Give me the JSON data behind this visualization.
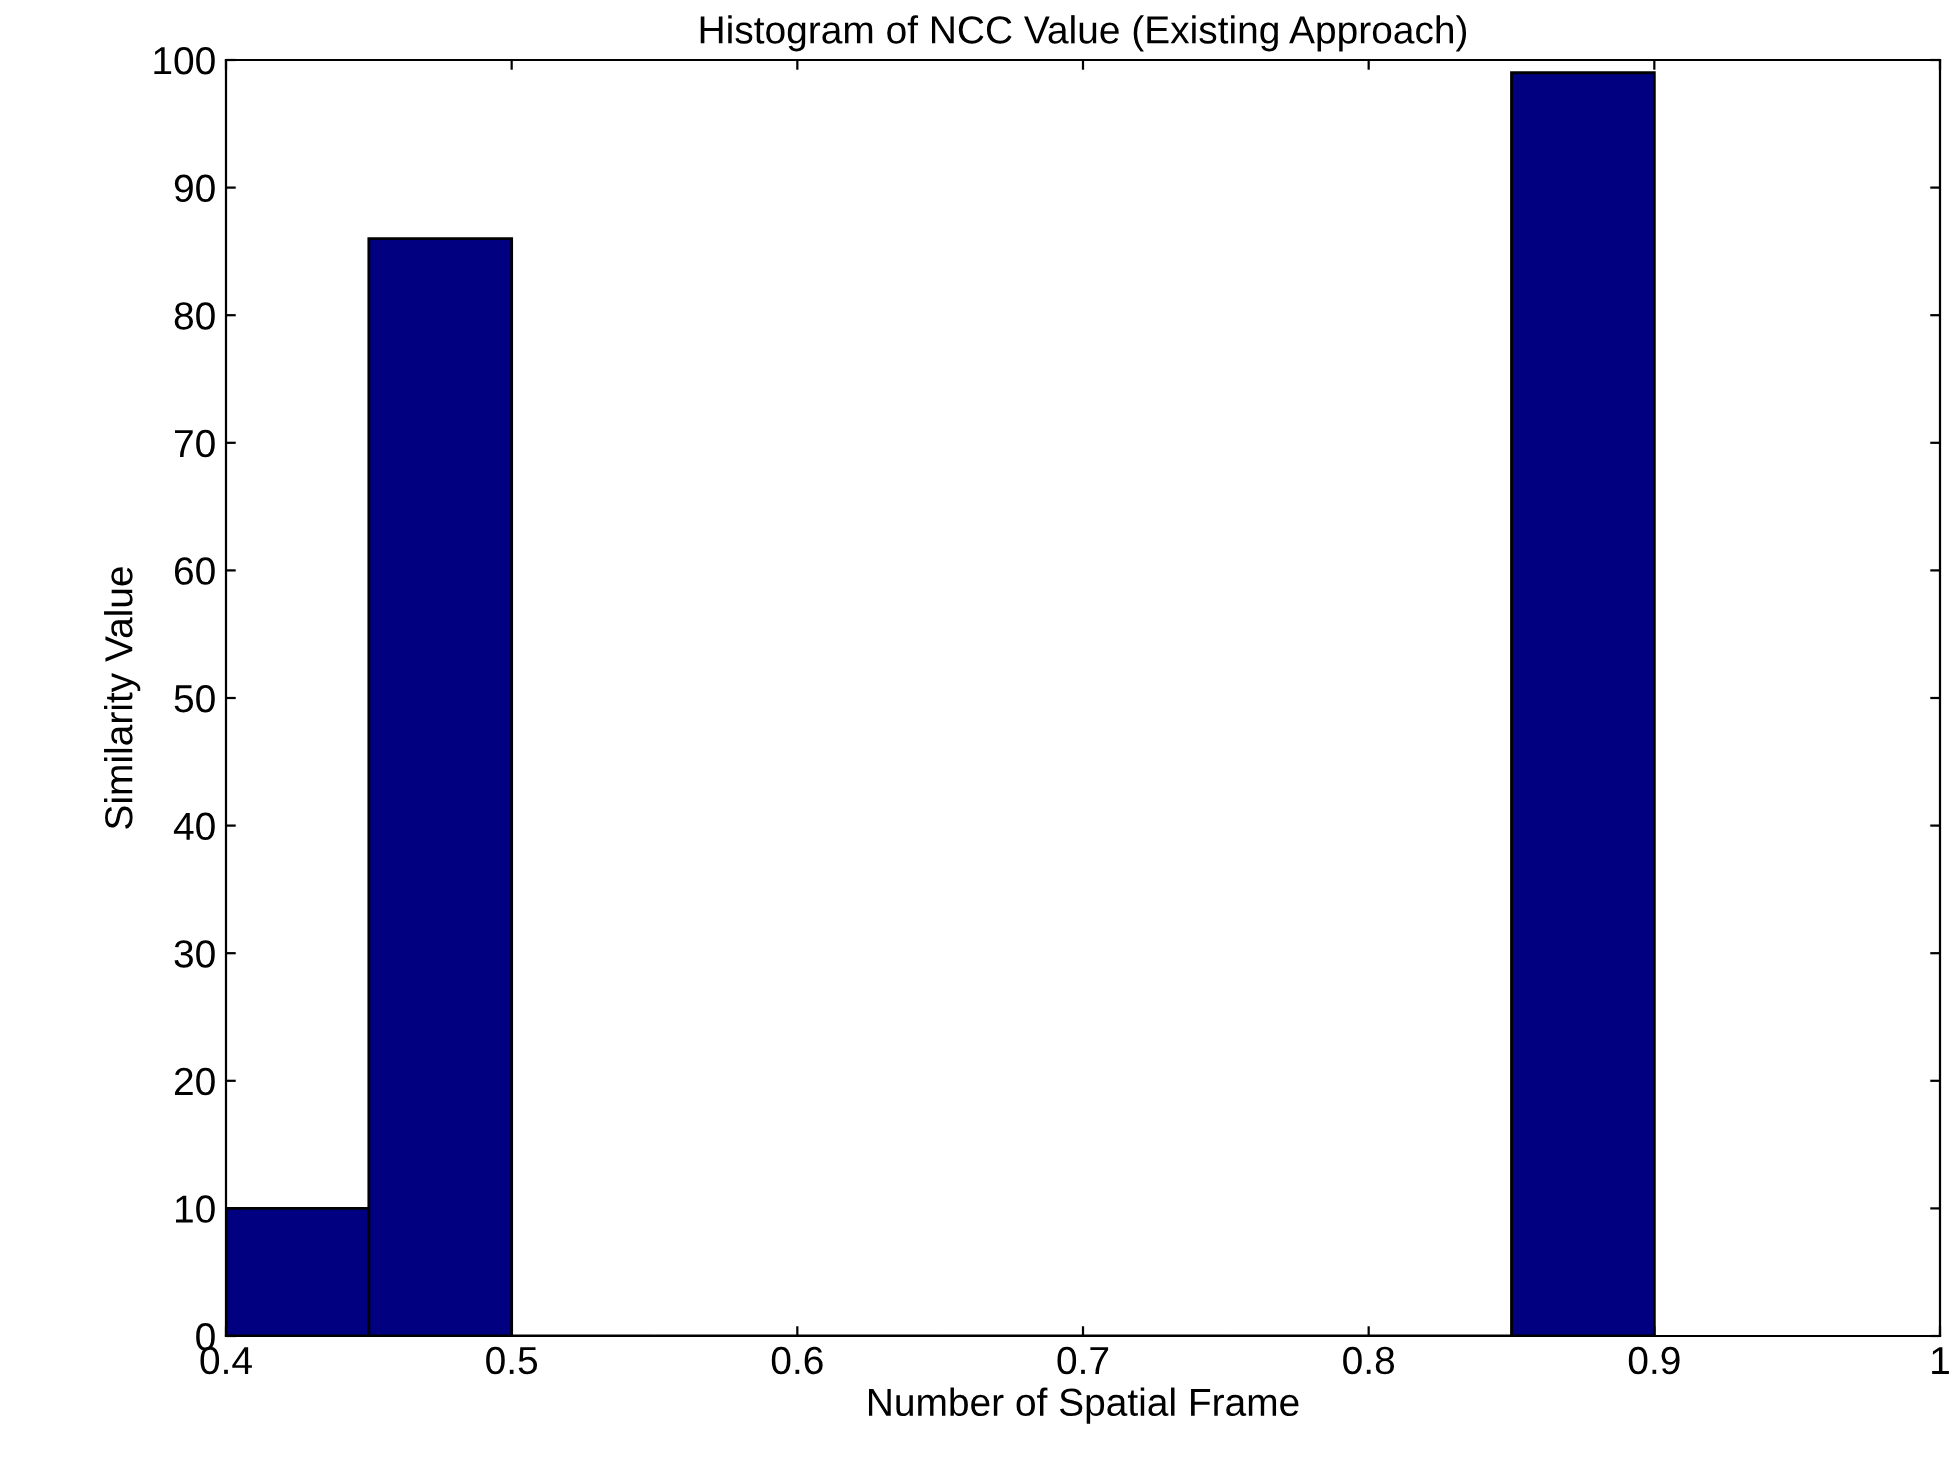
{
  "chart_data": {
    "type": "histogram",
    "title": "Histogram of NCC Value (Existing Approach)",
    "xlabel": "Number of Spatial Frame",
    "ylabel": "Similarity Value",
    "bins": [
      0.4,
      0.45,
      0.5,
      0.55,
      0.6,
      0.65,
      0.7,
      0.75,
      0.8,
      0.85,
      0.9
    ],
    "values": [
      10,
      86,
      0,
      0,
      0,
      0,
      0,
      0,
      0,
      99
    ],
    "color": "#000080",
    "xlim": [
      0.4,
      1
    ],
    "xticks": [
      0.4,
      0.5,
      0.6,
      0.7,
      0.8,
      0.9,
      1
    ],
    "ylim": [
      0,
      100
    ],
    "yticks": [
      0,
      10,
      20,
      30,
      40,
      50,
      60,
      70,
      80,
      90,
      100
    ],
    "grid": false,
    "legend": false
  }
}
